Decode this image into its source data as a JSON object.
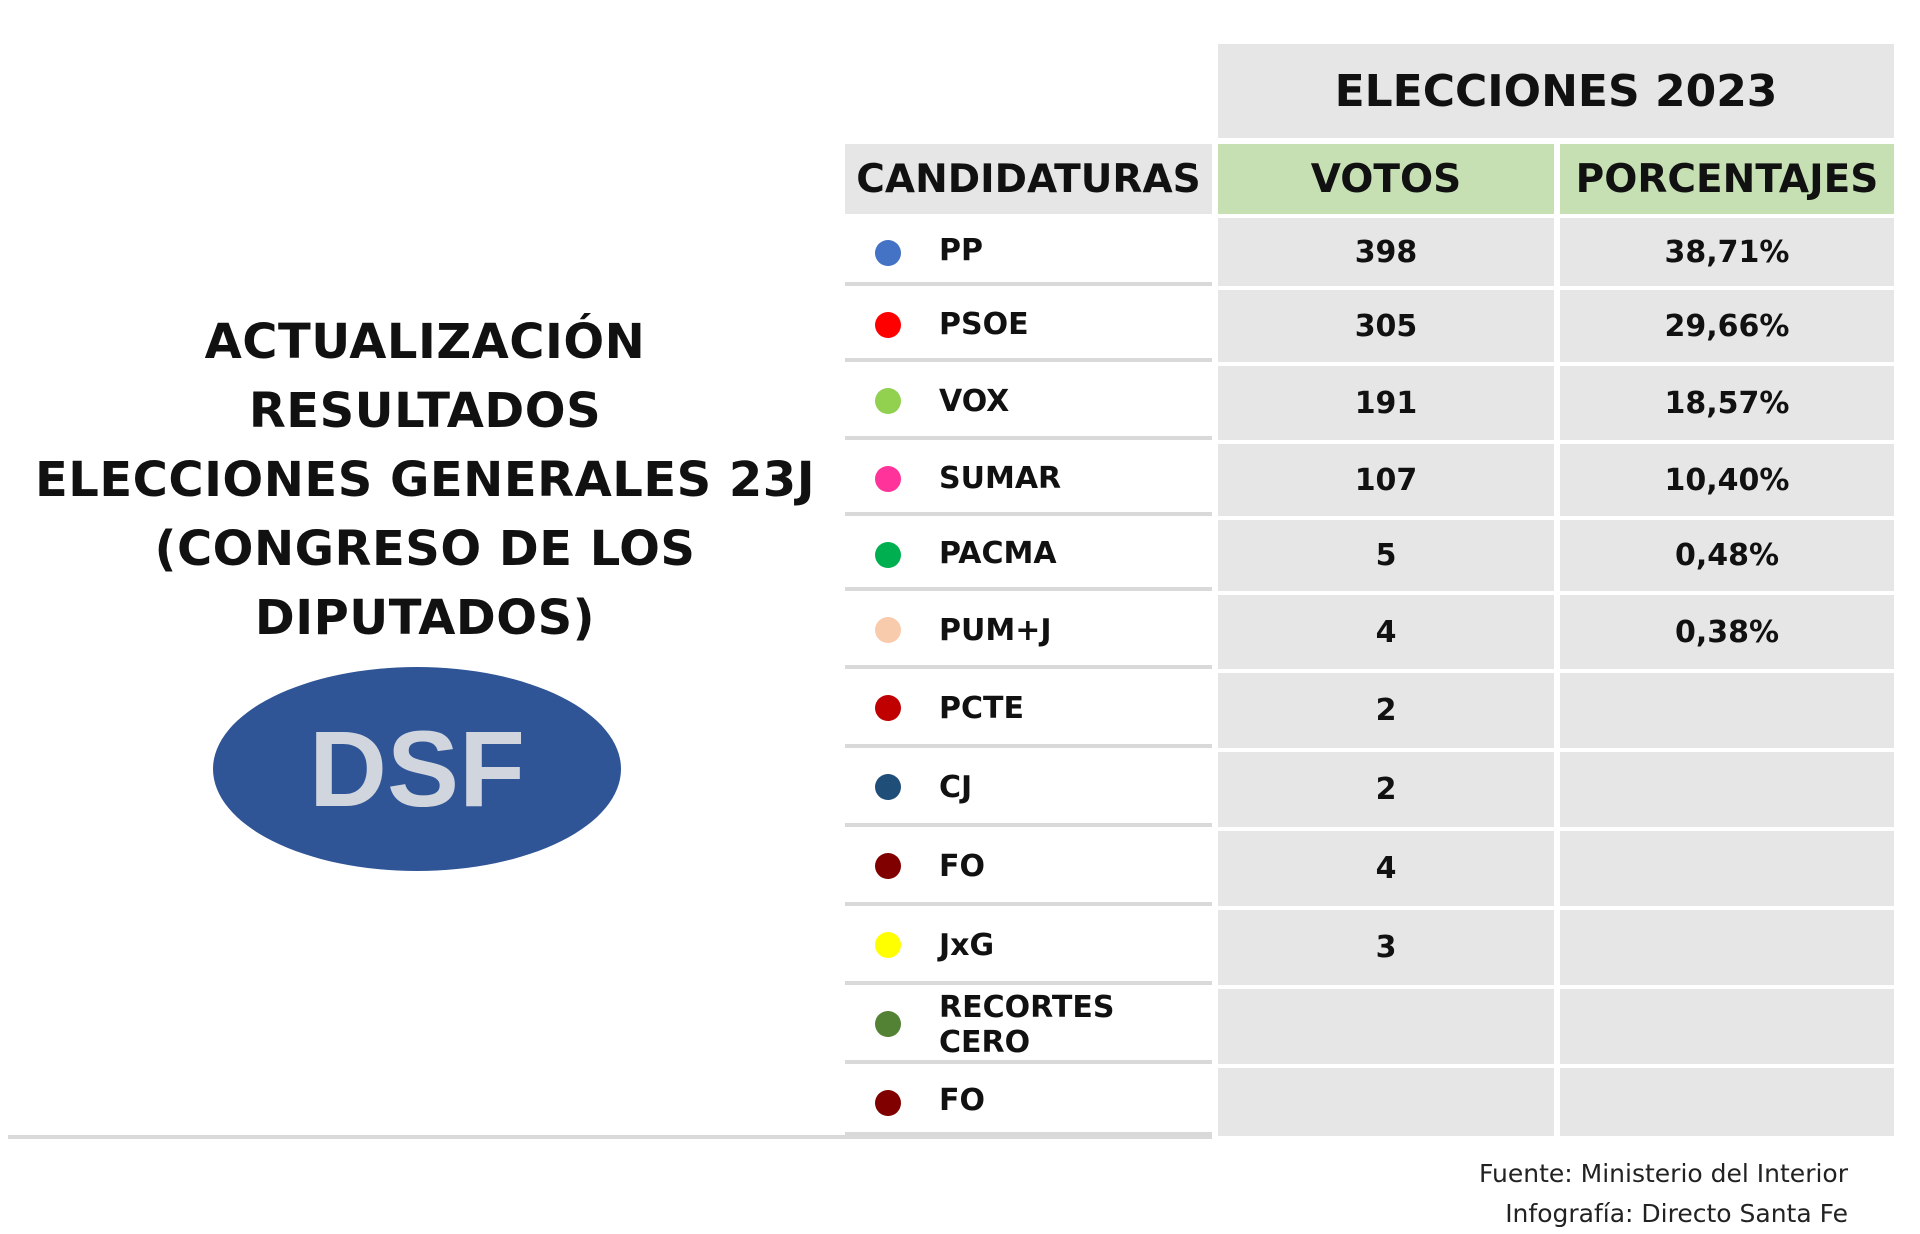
{
  "headline": {
    "line1": "ACTUALIZACIÓN RESULTADOS",
    "line2": "ELECCIONES GENERALES 23J",
    "line3": "(CONGRESO DE LOS",
    "line4": "DIPUTADOS)"
  },
  "logo": {
    "text": "DSF",
    "oval_color": "#2f5597",
    "text_color": "#d0d5de"
  },
  "table": {
    "title": "ELECCIONES 2023",
    "headers": {
      "candidaturas": "CANDIDATURAS",
      "votos": "VOTOS",
      "porcentajes": "PORCENTAJES"
    },
    "rows": [
      {
        "party": "PP",
        "color": "#4472c4",
        "votos": "398",
        "pct": "38,71%"
      },
      {
        "party": "PSOE",
        "color": "#ff0000",
        "votos": "305",
        "pct": "29,66%"
      },
      {
        "party": "VOX",
        "color": "#92d050",
        "votos": "191",
        "pct": "18,57%"
      },
      {
        "party": "SUMAR",
        "color": "#ff3399",
        "votos": "107",
        "pct": "10,40%"
      },
      {
        "party": "PACMA",
        "color": "#00b050",
        "votos": "5",
        "pct": "0,48%"
      },
      {
        "party": "PUM+J",
        "color": "#f8cbad",
        "votos": "4",
        "pct": "0,38%"
      },
      {
        "party": "PCTE",
        "color": "#c00000",
        "votos": "2",
        "pct": ""
      },
      {
        "party": "CJ",
        "color": "#1f4e79",
        "votos": "2",
        "pct": ""
      },
      {
        "party": "FO",
        "color": "#800000",
        "votos": "4",
        "pct": ""
      },
      {
        "party": "JxG",
        "color": "#ffff00",
        "votos": "3",
        "pct": ""
      },
      {
        "party": "RECORTES CERO",
        "color": "#548235",
        "votos": "",
        "pct": ""
      },
      {
        "party": "FO",
        "color": "#800000",
        "votos": "",
        "pct": ""
      }
    ]
  },
  "source": {
    "fuente": "Fuente: Ministerio del Interior",
    "infografia": "Infografía: Directo Santa Fe"
  }
}
